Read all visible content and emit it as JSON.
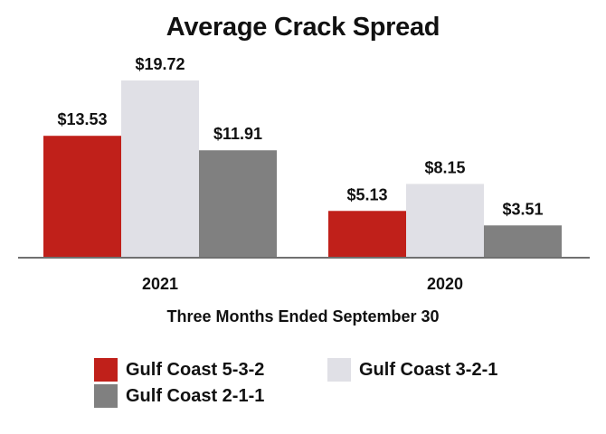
{
  "chart_data": {
    "type": "bar",
    "title": "Average Crack Spread",
    "xlabel": "Three Months Ended September 30",
    "ylabel": "",
    "categories": [
      "2021",
      "2020"
    ],
    "series": [
      {
        "name": "Gulf Coast 5-3-2",
        "color": "#C0201A",
        "values": [
          13.53,
          5.13
        ],
        "labels": [
          "$13.53",
          "$5.13"
        ]
      },
      {
        "name": "Gulf Coast 3-2-1",
        "color": "#E0E0E6",
        "values": [
          19.72,
          8.15
        ],
        "labels": [
          "$19.72",
          "$8.15"
        ]
      },
      {
        "name": "Gulf Coast 2-1-1",
        "color": "#808080",
        "values": [
          11.91,
          3.51
        ],
        "labels": [
          "$11.91",
          "$3.51"
        ]
      }
    ],
    "ylim": [
      0,
      19.72
    ],
    "grid": false,
    "legend_position": "bottom"
  }
}
